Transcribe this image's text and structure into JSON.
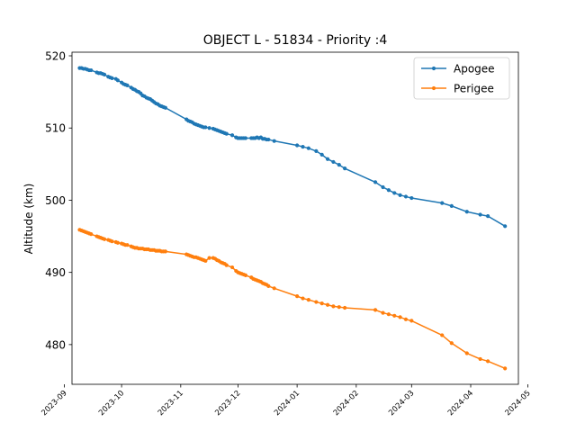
{
  "chart_data": {
    "type": "line",
    "title": "OBJECT L - 51834 - Priority :4",
    "xlabel": "",
    "ylabel": "Altitude (km)",
    "ylim": [
      474.5,
      520.5
    ],
    "xlim": [
      "2023-09-05",
      "2024-04-26"
    ],
    "yticks": [
      480,
      490,
      500,
      510,
      520
    ],
    "xticks": [
      "2023-09",
      "2023-10",
      "2023-11",
      "2023-12",
      "2024-01",
      "2024-02",
      "2024-03",
      "2024-04",
      "2024-05"
    ],
    "grid": false,
    "legend_position": "top-right",
    "series": [
      {
        "name": "Apogee",
        "color": "#1f77b4",
        "points": [
          [
            "2023-09-09",
            518.3
          ],
          [
            "2023-09-10",
            518.3
          ],
          [
            "2023-09-11",
            518.2
          ],
          [
            "2023-09-12",
            518.2
          ],
          [
            "2023-09-13",
            518.1
          ],
          [
            "2023-09-14",
            518.0
          ],
          [
            "2023-09-15",
            518.0
          ],
          [
            "2023-09-18",
            517.7
          ],
          [
            "2023-09-19",
            517.6
          ],
          [
            "2023-09-20",
            517.6
          ],
          [
            "2023-09-21",
            517.5
          ],
          [
            "2023-09-22",
            517.4
          ],
          [
            "2023-09-24",
            517.1
          ],
          [
            "2023-09-25",
            517.0
          ],
          [
            "2023-09-26",
            516.9
          ],
          [
            "2023-09-28",
            516.8
          ],
          [
            "2023-09-29",
            516.6
          ],
          [
            "2023-10-01",
            516.3
          ],
          [
            "2023-10-02",
            516.1
          ],
          [
            "2023-10-03",
            516.0
          ],
          [
            "2023-10-04",
            515.9
          ],
          [
            "2023-10-06",
            515.6
          ],
          [
            "2023-10-07",
            515.4
          ],
          [
            "2023-10-08",
            515.3
          ],
          [
            "2023-10-09",
            515.1
          ],
          [
            "2023-10-10",
            515.0
          ],
          [
            "2023-10-11",
            514.8
          ],
          [
            "2023-10-12",
            514.5
          ],
          [
            "2023-10-13",
            514.4
          ],
          [
            "2023-10-14",
            514.2
          ],
          [
            "2023-10-15",
            514.1
          ],
          [
            "2023-10-16",
            514.0
          ],
          [
            "2023-10-17",
            513.8
          ],
          [
            "2023-10-18",
            513.6
          ],
          [
            "2023-10-19",
            513.4
          ],
          [
            "2023-10-20",
            513.3
          ],
          [
            "2023-10-21",
            513.1
          ],
          [
            "2023-10-22",
            513.0
          ],
          [
            "2023-10-23",
            512.9
          ],
          [
            "2023-10-24",
            512.8
          ],
          [
            "2023-11-04",
            511.2
          ],
          [
            "2023-11-05",
            511.0
          ],
          [
            "2023-11-06",
            510.9
          ],
          [
            "2023-11-07",
            510.8
          ],
          [
            "2023-11-08",
            510.6
          ],
          [
            "2023-11-09",
            510.5
          ],
          [
            "2023-11-10",
            510.4
          ],
          [
            "2023-11-11",
            510.3
          ],
          [
            "2023-11-12",
            510.2
          ],
          [
            "2023-11-13",
            510.1
          ],
          [
            "2023-11-14",
            510.1
          ],
          [
            "2023-11-16",
            510.0
          ],
          [
            "2023-11-18",
            509.9
          ],
          [
            "2023-11-19",
            509.8
          ],
          [
            "2023-11-20",
            509.7
          ],
          [
            "2023-11-21",
            509.6
          ],
          [
            "2023-11-22",
            509.5
          ],
          [
            "2023-11-23",
            509.4
          ],
          [
            "2023-11-24",
            509.3
          ],
          [
            "2023-11-25",
            509.2
          ],
          [
            "2023-11-28",
            509.0
          ],
          [
            "2023-11-30",
            508.7
          ],
          [
            "2023-12-01",
            508.6
          ],
          [
            "2023-12-02",
            508.6
          ],
          [
            "2023-12-03",
            508.6
          ],
          [
            "2023-12-04",
            508.6
          ],
          [
            "2023-12-05",
            508.6
          ],
          [
            "2023-12-08",
            508.6
          ],
          [
            "2023-12-09",
            508.6
          ],
          [
            "2023-12-10",
            508.6
          ],
          [
            "2023-12-11",
            508.7
          ],
          [
            "2023-12-12",
            508.6
          ],
          [
            "2023-12-13",
            508.7
          ],
          [
            "2023-12-14",
            508.5
          ],
          [
            "2023-12-15",
            508.5
          ],
          [
            "2023-12-16",
            508.4
          ],
          [
            "2023-12-17",
            508.4
          ],
          [
            "2023-12-20",
            508.2
          ],
          [
            "2024-01-01",
            507.6
          ],
          [
            "2024-01-04",
            507.4
          ],
          [
            "2024-01-07",
            507.2
          ],
          [
            "2024-01-11",
            506.8
          ],
          [
            "2024-01-14",
            506.3
          ],
          [
            "2024-01-17",
            505.7
          ],
          [
            "2024-01-20",
            505.3
          ],
          [
            "2024-01-23",
            504.9
          ],
          [
            "2024-01-26",
            504.4
          ],
          [
            "2024-02-11",
            502.5
          ],
          [
            "2024-02-15",
            501.8
          ],
          [
            "2024-02-18",
            501.4
          ],
          [
            "2024-02-21",
            501.0
          ],
          [
            "2024-02-24",
            500.7
          ],
          [
            "2024-02-27",
            500.5
          ],
          [
            "2024-03-01",
            500.3
          ],
          [
            "2024-03-17",
            499.6
          ],
          [
            "2024-03-22",
            499.2
          ],
          [
            "2024-03-30",
            498.4
          ],
          [
            "2024-04-06",
            498.0
          ],
          [
            "2024-04-10",
            497.8
          ],
          [
            "2024-04-19",
            496.4
          ]
        ]
      },
      {
        "name": "Perigee",
        "color": "#ff7f0e",
        "points": [
          [
            "2023-09-09",
            495.9
          ],
          [
            "2023-09-10",
            495.8
          ],
          [
            "2023-09-11",
            495.7
          ],
          [
            "2023-09-12",
            495.6
          ],
          [
            "2023-09-13",
            495.5
          ],
          [
            "2023-09-14",
            495.4
          ],
          [
            "2023-09-15",
            495.3
          ],
          [
            "2023-09-18",
            495.0
          ],
          [
            "2023-09-19",
            494.9
          ],
          [
            "2023-09-20",
            494.8
          ],
          [
            "2023-09-21",
            494.7
          ],
          [
            "2023-09-22",
            494.6
          ],
          [
            "2023-09-24",
            494.5
          ],
          [
            "2023-09-25",
            494.4
          ],
          [
            "2023-09-26",
            494.3
          ],
          [
            "2023-09-28",
            494.2
          ],
          [
            "2023-09-29",
            494.1
          ],
          [
            "2023-10-01",
            494.0
          ],
          [
            "2023-10-02",
            493.9
          ],
          [
            "2023-10-03",
            493.8
          ],
          [
            "2023-10-04",
            493.8
          ],
          [
            "2023-10-06",
            493.6
          ],
          [
            "2023-10-07",
            493.5
          ],
          [
            "2023-10-08",
            493.4
          ],
          [
            "2023-10-09",
            493.4
          ],
          [
            "2023-10-10",
            493.3
          ],
          [
            "2023-10-11",
            493.3
          ],
          [
            "2023-10-12",
            493.3
          ],
          [
            "2023-10-13",
            493.2
          ],
          [
            "2023-10-14",
            493.2
          ],
          [
            "2023-10-15",
            493.2
          ],
          [
            "2023-10-16",
            493.1
          ],
          [
            "2023-10-17",
            493.1
          ],
          [
            "2023-10-18",
            493.1
          ],
          [
            "2023-10-19",
            493.0
          ],
          [
            "2023-10-20",
            493.0
          ],
          [
            "2023-10-21",
            493.0
          ],
          [
            "2023-10-22",
            492.9
          ],
          [
            "2023-10-23",
            492.9
          ],
          [
            "2023-10-24",
            492.9
          ],
          [
            "2023-11-04",
            492.5
          ],
          [
            "2023-11-05",
            492.4
          ],
          [
            "2023-11-06",
            492.3
          ],
          [
            "2023-11-07",
            492.2
          ],
          [
            "2023-11-08",
            492.1
          ],
          [
            "2023-11-09",
            492.1
          ],
          [
            "2023-11-10",
            492.0
          ],
          [
            "2023-11-11",
            491.9
          ],
          [
            "2023-11-12",
            491.8
          ],
          [
            "2023-11-13",
            491.7
          ],
          [
            "2023-11-14",
            491.6
          ],
          [
            "2023-11-16",
            492.0
          ],
          [
            "2023-11-18",
            492.0
          ],
          [
            "2023-11-19",
            491.9
          ],
          [
            "2023-11-20",
            491.7
          ],
          [
            "2023-11-21",
            491.6
          ],
          [
            "2023-11-22",
            491.4
          ],
          [
            "2023-11-23",
            491.3
          ],
          [
            "2023-11-24",
            491.2
          ],
          [
            "2023-11-25",
            491.0
          ],
          [
            "2023-11-28",
            490.7
          ],
          [
            "2023-11-30",
            490.2
          ],
          [
            "2023-12-01",
            490.0
          ],
          [
            "2023-12-02",
            489.9
          ],
          [
            "2023-12-03",
            489.8
          ],
          [
            "2023-12-04",
            489.7
          ],
          [
            "2023-12-05",
            489.6
          ],
          [
            "2023-12-08",
            489.3
          ],
          [
            "2023-12-09",
            489.1
          ],
          [
            "2023-12-10",
            489.0
          ],
          [
            "2023-12-11",
            488.9
          ],
          [
            "2023-12-12",
            488.8
          ],
          [
            "2023-12-13",
            488.7
          ],
          [
            "2023-12-14",
            488.5
          ],
          [
            "2023-12-15",
            488.4
          ],
          [
            "2023-12-16",
            488.3
          ],
          [
            "2023-12-17",
            488.1
          ],
          [
            "2023-12-20",
            487.8
          ],
          [
            "2024-01-01",
            486.7
          ],
          [
            "2024-01-04",
            486.4
          ],
          [
            "2024-01-07",
            486.2
          ],
          [
            "2024-01-11",
            485.9
          ],
          [
            "2024-01-14",
            485.7
          ],
          [
            "2024-01-17",
            485.5
          ],
          [
            "2024-01-20",
            485.3
          ],
          [
            "2024-01-23",
            485.2
          ],
          [
            "2024-01-26",
            485.1
          ],
          [
            "2024-02-11",
            484.8
          ],
          [
            "2024-02-15",
            484.4
          ],
          [
            "2024-02-18",
            484.2
          ],
          [
            "2024-02-21",
            484.0
          ],
          [
            "2024-02-24",
            483.8
          ],
          [
            "2024-02-27",
            483.5
          ],
          [
            "2024-03-01",
            483.3
          ],
          [
            "2024-03-17",
            481.3
          ],
          [
            "2024-03-22",
            480.2
          ],
          [
            "2024-03-30",
            478.8
          ],
          [
            "2024-04-06",
            478.0
          ],
          [
            "2024-04-10",
            477.7
          ],
          [
            "2024-04-19",
            476.7
          ]
        ]
      }
    ]
  }
}
